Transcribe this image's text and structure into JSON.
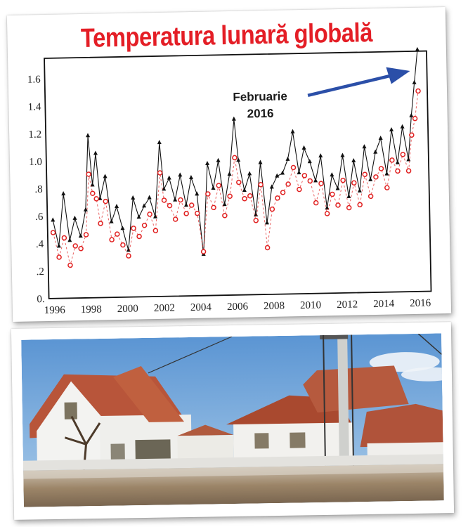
{
  "title": "Temperatura lunară globală",
  "annotation": {
    "line1": "Februarie",
    "line2": "2016",
    "arrow_color": "#2b4fa8"
  },
  "colors": {
    "title": "#e41e26",
    "series_black": "#111111",
    "series_red": "#e02020"
  },
  "chart_data": {
    "type": "line",
    "title": "Temperatura lunară globală",
    "xlabel": "",
    "ylabel": "",
    "xlim": [
      1995.7,
      2016.6
    ],
    "ylim": [
      0,
      1.75
    ],
    "x_ticks": [
      "1996",
      "1998",
      "2000",
      "2002",
      "2004",
      "2006",
      "2008",
      "2010",
      "2012",
      "2014",
      "2016"
    ],
    "y_ticks": [
      "0.",
      ".2",
      ".4",
      ".6",
      ".8",
      "1.0",
      "1.2",
      "1.4",
      "1.6"
    ],
    "grid": false,
    "legend": null,
    "annotations": [
      {
        "text": "Februarie 2016",
        "x": 2016.1,
        "y": 1.76
      }
    ],
    "series": [
      {
        "name": "black-triangles",
        "marker": "triangle",
        "line": "solid",
        "x": [
          1996.0,
          1996.3,
          1996.6,
          1996.9,
          1997.2,
          1997.5,
          1997.8,
          1998.0,
          1998.2,
          1998.4,
          1998.6,
          1998.9,
          1999.2,
          1999.5,
          1999.8,
          2000.1,
          2000.4,
          2000.7,
          2001.0,
          2001.3,
          2001.6,
          2001.9,
          2002.1,
          2002.4,
          2002.7,
          2003.0,
          2003.3,
          2003.6,
          2003.9,
          2004.2,
          2004.5,
          2004.8,
          2005.1,
          2005.4,
          2005.7,
          2006.0,
          2006.2,
          2006.5,
          2006.8,
          2007.1,
          2007.4,
          2007.7,
          2008.0,
          2008.3,
          2008.6,
          2008.9,
          2009.2,
          2009.5,
          2009.8,
          2010.1,
          2010.4,
          2010.7,
          2011.0,
          2011.3,
          2011.6,
          2011.9,
          2012.2,
          2012.5,
          2012.8,
          2013.1,
          2013.4,
          2013.7,
          2014.0,
          2014.3,
          2014.6,
          2014.9,
          2015.2,
          2015.5,
          2015.7,
          2015.9,
          2016.1
        ],
        "values": [
          0.57,
          0.38,
          0.76,
          0.42,
          0.58,
          0.45,
          0.64,
          1.18,
          0.82,
          1.05,
          0.72,
          0.88,
          0.55,
          0.66,
          0.5,
          0.34,
          0.72,
          0.58,
          0.66,
          0.72,
          0.58,
          1.12,
          0.78,
          0.86,
          0.7,
          0.88,
          0.66,
          0.86,
          0.74,
          0.3,
          0.96,
          0.78,
          0.98,
          0.66,
          0.88,
          1.28,
          0.98,
          0.76,
          0.88,
          0.58,
          0.96,
          0.52,
          0.78,
          0.86,
          0.88,
          0.98,
          1.18,
          0.88,
          1.06,
          0.96,
          0.82,
          1.0,
          0.62,
          0.86,
          0.76,
          1.0,
          0.7,
          0.96,
          0.74,
          1.06,
          0.82,
          1.02,
          1.12,
          0.86,
          1.18,
          0.94,
          1.2,
          0.96,
          1.28,
          1.52,
          1.76
        ]
      },
      {
        "name": "red-circles",
        "marker": "circle",
        "line": "dashed",
        "x": [
          1996.0,
          1996.3,
          1996.6,
          1996.9,
          1997.2,
          1997.5,
          1997.8,
          1998.0,
          1998.2,
          1998.4,
          1998.6,
          1998.9,
          1999.2,
          1999.5,
          1999.8,
          2000.1,
          2000.4,
          2000.7,
          2001.0,
          2001.3,
          2001.6,
          2001.9,
          2002.1,
          2002.4,
          2002.7,
          2003.0,
          2003.3,
          2003.6,
          2003.9,
          2004.2,
          2004.5,
          2004.8,
          2005.1,
          2005.4,
          2005.7,
          2006.0,
          2006.2,
          2006.5,
          2006.8,
          2007.1,
          2007.4,
          2007.7,
          2008.0,
          2008.3,
          2008.6,
          2008.9,
          2009.2,
          2009.5,
          2009.8,
          2010.1,
          2010.4,
          2010.7,
          2011.0,
          2011.3,
          2011.6,
          2011.9,
          2012.2,
          2012.5,
          2012.8,
          2013.1,
          2013.4,
          2013.7,
          2014.0,
          2014.3,
          2014.6,
          2014.9,
          2015.2,
          2015.5,
          2015.7,
          2015.9,
          2016.1
        ],
        "values": [
          0.48,
          0.3,
          0.44,
          0.24,
          0.38,
          0.36,
          0.46,
          0.9,
          0.76,
          0.72,
          0.54,
          0.7,
          0.42,
          0.46,
          0.38,
          0.3,
          0.5,
          0.44,
          0.52,
          0.6,
          0.48,
          0.9,
          0.7,
          0.66,
          0.56,
          0.7,
          0.6,
          0.66,
          0.6,
          0.32,
          0.74,
          0.64,
          0.8,
          0.58,
          0.72,
          1.0,
          0.82,
          0.7,
          0.72,
          0.54,
          0.8,
          0.34,
          0.62,
          0.7,
          0.74,
          0.8,
          0.92,
          0.76,
          0.86,
          0.82,
          0.66,
          0.8,
          0.58,
          0.72,
          0.64,
          0.82,
          0.62,
          0.8,
          0.64,
          0.86,
          0.7,
          0.84,
          0.9,
          0.76,
          0.96,
          0.88,
          1.0,
          0.88,
          1.14,
          1.26,
          1.46
        ]
      }
    ]
  },
  "photo": {
    "description": "flooded street with white houses with red-tiled roofs, bare tree, utility pole, blue sky"
  }
}
